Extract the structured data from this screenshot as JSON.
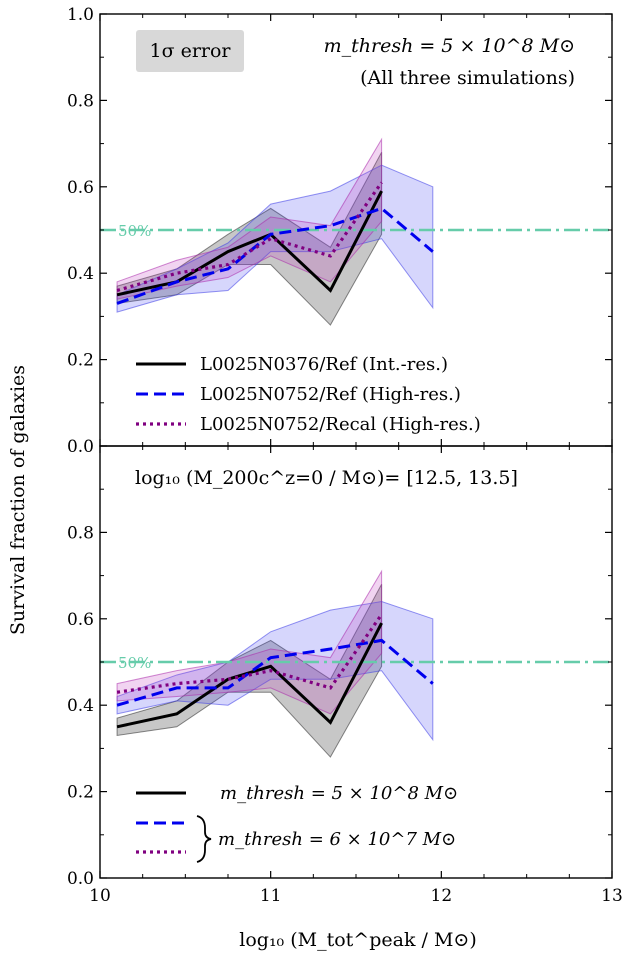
{
  "figure": {
    "ylabel": "Survival fraction of galaxies",
    "xlabel": "log₁₀ (M_tot^peak / M⊙)"
  },
  "chart_data": [
    {
      "type": "line",
      "panel": "top",
      "xlim": [
        10,
        13
      ],
      "ylim": [
        0.0,
        1.0
      ],
      "xticks": [
        "10",
        "11",
        "12",
        "13"
      ],
      "yticks": [
        "0.0",
        "0.2",
        "0.4",
        "0.6",
        "0.8",
        "1.0"
      ],
      "grid": false,
      "legend_placement": "lower-left",
      "error_box_label": "1σ error",
      "annotation_lines": [
        "m_thresh = 5 × 10^8 M⊙",
        "(All three simulations)"
      ],
      "reference_line": {
        "y": 0.5,
        "label": "50%",
        "color": "#66ccaa"
      },
      "series": [
        {
          "name": "L0025N0376/Ref (Int.-res.)",
          "color": "#000000",
          "style": "solid",
          "x": [
            10.1,
            10.45,
            10.75,
            11.0,
            11.35,
            11.65
          ],
          "y": [
            0.35,
            0.38,
            0.45,
            0.49,
            0.36,
            0.59
          ],
          "lower": [
            0.33,
            0.35,
            0.42,
            0.42,
            0.28,
            0.49
          ],
          "upper": [
            0.37,
            0.41,
            0.49,
            0.55,
            0.46,
            0.68
          ]
        },
        {
          "name": "L0025N0752/Ref (High-res.)",
          "color": "#0000ee",
          "style": "dashed",
          "x": [
            10.1,
            10.45,
            10.75,
            11.0,
            11.35,
            11.65,
            11.95
          ],
          "y": [
            0.33,
            0.38,
            0.41,
            0.49,
            0.51,
            0.55,
            0.45
          ],
          "lower": [
            0.31,
            0.35,
            0.36,
            0.45,
            0.45,
            0.48,
            0.32
          ],
          "upper": [
            0.35,
            0.41,
            0.47,
            0.56,
            0.59,
            0.65,
            0.6
          ]
        },
        {
          "name": "L0025N0752/Recal (High-res.)",
          "color": "#800080",
          "style": "dotted",
          "x": [
            10.1,
            10.45,
            10.75,
            11.0,
            11.35,
            11.65
          ],
          "y": [
            0.36,
            0.4,
            0.42,
            0.48,
            0.44,
            0.61
          ],
          "lower": [
            0.34,
            0.37,
            0.39,
            0.44,
            0.38,
            0.52
          ],
          "upper": [
            0.38,
            0.43,
            0.46,
            0.53,
            0.51,
            0.71
          ]
        }
      ]
    },
    {
      "type": "line",
      "panel": "bottom",
      "xlim": [
        10,
        13
      ],
      "ylim": [
        0.0,
        1.0
      ],
      "xticks": [
        "10",
        "11",
        "12",
        "13"
      ],
      "yticks": [
        "0.0",
        "0.2",
        "0.4",
        "0.6",
        "0.8"
      ],
      "grid": false,
      "legend_placement": "lower-left",
      "title_text": "log₁₀ (M_200c^z=0 / M⊙)= [12.5, 13.5]",
      "reference_line": {
        "y": 0.5,
        "label": "50%",
        "color": "#66ccaa"
      },
      "legend_labels": [
        "m_thresh = 5 × 10^8 M⊙",
        "m_thresh = 6 × 10^7 M⊙"
      ],
      "series": [
        {
          "color": "#000000",
          "style": "solid",
          "x": [
            10.1,
            10.45,
            10.75,
            11.0,
            11.35,
            11.65
          ],
          "y": [
            0.35,
            0.38,
            0.46,
            0.49,
            0.36,
            0.59
          ],
          "lower": [
            0.33,
            0.35,
            0.43,
            0.43,
            0.28,
            0.49
          ],
          "upper": [
            0.37,
            0.41,
            0.5,
            0.55,
            0.46,
            0.68
          ]
        },
        {
          "color": "#0000ee",
          "style": "dashed",
          "x": [
            10.1,
            10.45,
            10.75,
            11.0,
            11.35,
            11.65,
            11.95
          ],
          "y": [
            0.4,
            0.44,
            0.44,
            0.51,
            0.53,
            0.55,
            0.45
          ],
          "lower": [
            0.38,
            0.41,
            0.4,
            0.46,
            0.46,
            0.48,
            0.32
          ],
          "upper": [
            0.42,
            0.47,
            0.5,
            0.57,
            0.62,
            0.64,
            0.6
          ]
        },
        {
          "color": "#800080",
          "style": "dotted",
          "x": [
            10.1,
            10.45,
            10.75,
            11.0,
            11.35,
            11.65
          ],
          "y": [
            0.43,
            0.45,
            0.46,
            0.48,
            0.44,
            0.61
          ],
          "lower": [
            0.41,
            0.42,
            0.43,
            0.44,
            0.38,
            0.52
          ],
          "upper": [
            0.45,
            0.48,
            0.5,
            0.53,
            0.51,
            0.71
          ]
        }
      ]
    }
  ]
}
